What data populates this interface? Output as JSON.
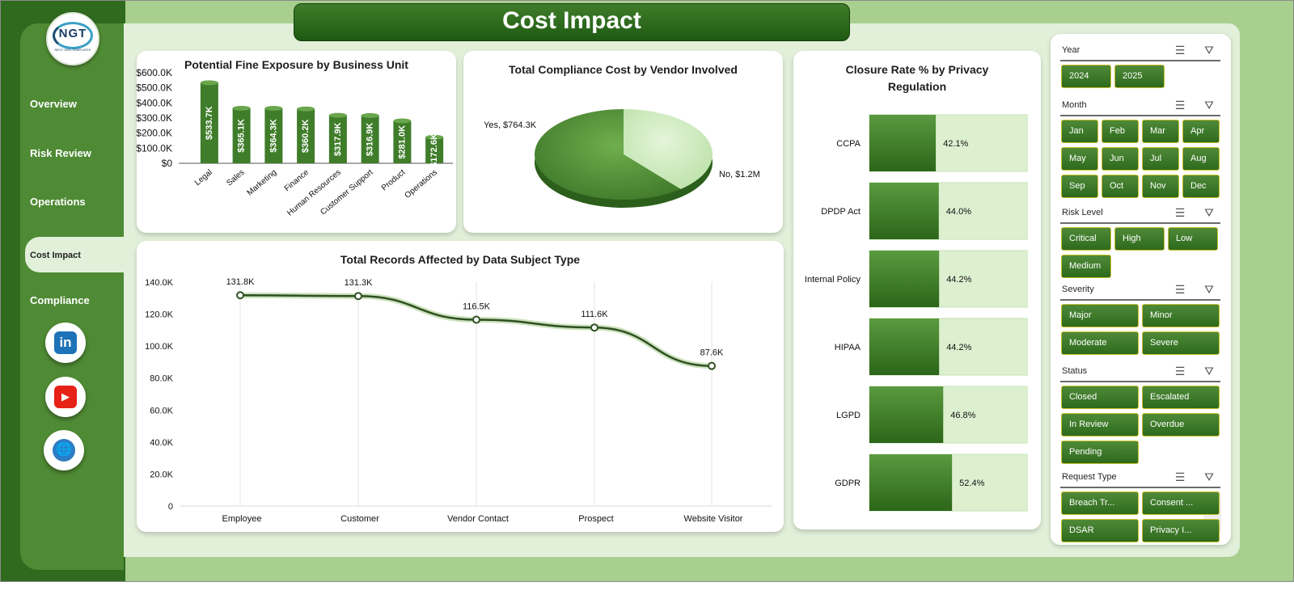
{
  "app": {
    "title": "Cost Impact",
    "logo": {
      "brand": "NGT",
      "tagline": "NEXT GEN TEMPLATES"
    }
  },
  "nav": {
    "items": [
      {
        "label": "Overview",
        "active": false
      },
      {
        "label": "Risk Review",
        "active": false
      },
      {
        "label": "Operations",
        "active": false
      },
      {
        "label": "Cost Impact",
        "active": true
      },
      {
        "label": "Compliance",
        "active": false
      }
    ],
    "social": [
      {
        "icon": "linkedin-icon",
        "glyph": "in",
        "color": "#1d72b8"
      },
      {
        "icon": "youtube-icon",
        "glyph": "▶",
        "color": "#e62117"
      },
      {
        "icon": "globe-icon",
        "glyph": "🌐",
        "color": "#2b7dc4"
      }
    ]
  },
  "charts": {
    "fine_exposure": {
      "title": "Potential Fine Exposure by Business Unit",
      "y_ticks": [
        "$600.0K",
        "$500.0K",
        "$400.0K",
        "$300.0K",
        "$200.0K",
        "$100.0K",
        "$0"
      ]
    },
    "vendor_cost": {
      "title": "Total Compliance Cost by Vendor Involved"
    },
    "closure_rate": {
      "title": "Closure Rate % by Privacy Regulation"
    },
    "records": {
      "title": "Total Records Affected by Data Subject Type",
      "y_ticks": [
        "140.0K",
        "120.0K",
        "100.0K",
        "80.0K",
        "60.0K",
        "40.0K",
        "20.0K",
        "0"
      ]
    }
  },
  "chart_data": [
    {
      "type": "bar",
      "title": "Potential Fine Exposure by Business Unit",
      "categories": [
        "Legal",
        "Sales",
        "Marketing",
        "Finance",
        "Human Resources",
        "Customer Support",
        "Product",
        "Operations"
      ],
      "values": [
        533.7,
        365.1,
        364.3,
        360.2,
        317.9,
        316.9,
        281.0,
        172.6
      ],
      "data_labels": [
        "$533.7K",
        "$365.1K",
        "$364.3K",
        "$360.2K",
        "$317.9K",
        "$316.9K",
        "$281.0K",
        "$172.6K"
      ],
      "unit": "K",
      "ylim": [
        0,
        600
      ],
      "color": "#3f7d2a"
    },
    {
      "type": "pie",
      "title": "Total Compliance Cost by Vendor Involved",
      "labels": [
        "Yes",
        "No"
      ],
      "values": [
        764.3,
        1200
      ],
      "data_labels": [
        "Yes, $764.3K",
        "No, $1.2M"
      ],
      "colors": [
        "#c9e8b8",
        "#4f8a34"
      ]
    },
    {
      "type": "bar",
      "orientation": "horizontal",
      "title": "Closure Rate % by Privacy Regulation",
      "categories": [
        "CCPA",
        "DPDP Act",
        "Internal Policy",
        "HIPAA",
        "LGPD",
        "GDPR"
      ],
      "values": [
        42.1,
        44.0,
        44.2,
        44.2,
        46.8,
        52.4
      ],
      "data_labels": [
        "42.1%",
        "44.0%",
        "44.2%",
        "44.2%",
        "46.8%",
        "52.4%"
      ],
      "xlim": [
        0,
        100
      ],
      "color": "#3f7d2a"
    },
    {
      "type": "line",
      "title": "Total Records Affected by Data Subject Type",
      "categories": [
        "Employee",
        "Customer",
        "Vendor Contact",
        "Prospect",
        "Website Visitor"
      ],
      "values": [
        131.8,
        131.3,
        116.5,
        111.6,
        87.6
      ],
      "data_labels": [
        "131.8K",
        "131.3K",
        "116.5K",
        "111.6K",
        "87.6K"
      ],
      "unit": "K",
      "ylim": [
        0,
        140
      ],
      "color": "#2f4f22"
    }
  ],
  "slicers": [
    {
      "label": "Year",
      "options": [
        "2024",
        "2025"
      ]
    },
    {
      "label": "Month",
      "options": [
        "Jan",
        "Feb",
        "Mar",
        "Apr",
        "May",
        "Jun",
        "Jul",
        "Aug",
        "Sep",
        "Oct",
        "Nov",
        "Dec"
      ]
    },
    {
      "label": "Risk Level",
      "options": [
        "Critical",
        "High",
        "Low",
        "Medium"
      ]
    },
    {
      "label": "Severity",
      "options": [
        "Major",
        "Minor",
        "Moderate",
        "Severe"
      ]
    },
    {
      "label": "Status",
      "options": [
        "Closed",
        "Escalated",
        "In Review",
        "Overdue",
        "Pending"
      ]
    },
    {
      "label": "Request Type",
      "options": [
        "Breach Tr...",
        "Consent ...",
        "DSAR",
        "Privacy I..."
      ]
    }
  ]
}
